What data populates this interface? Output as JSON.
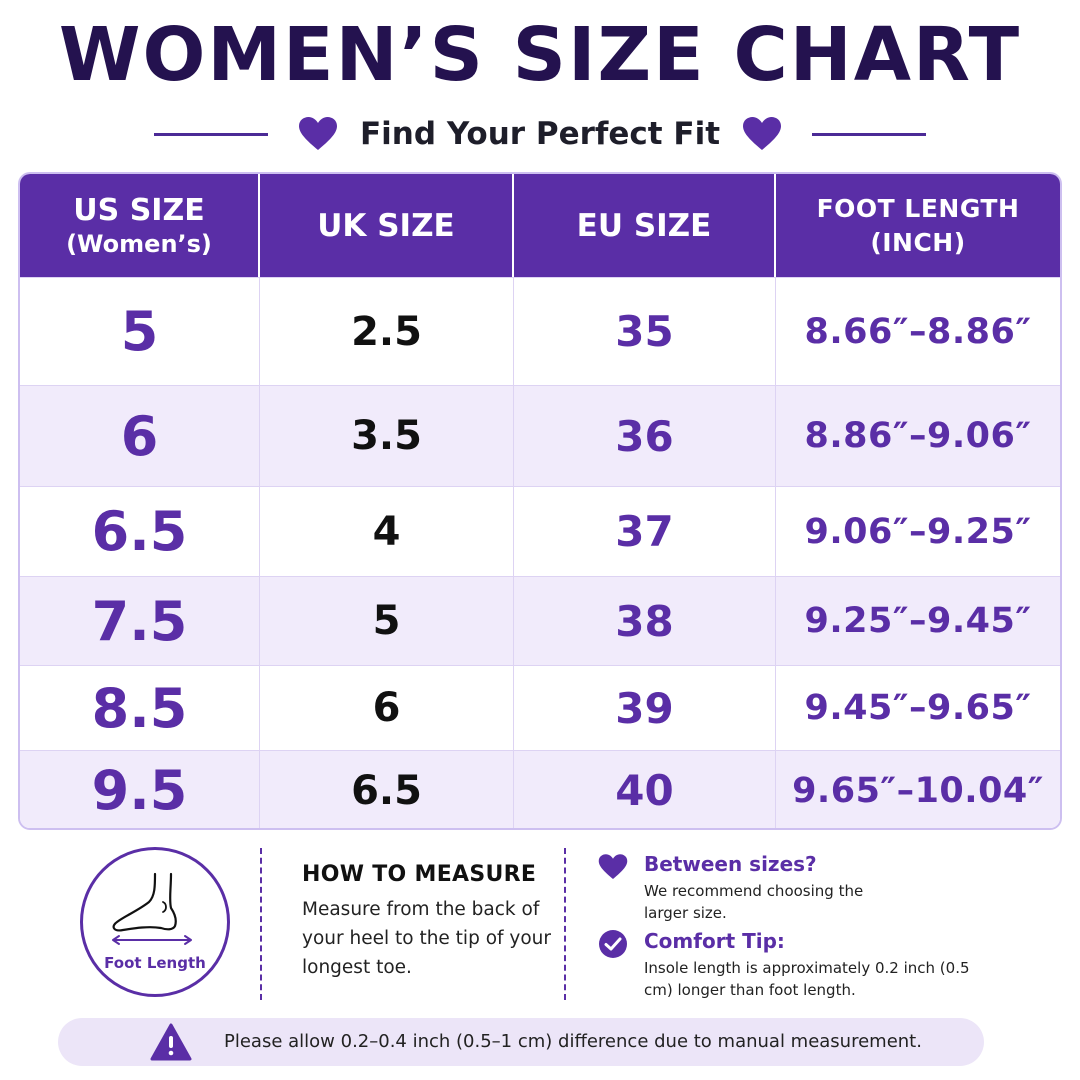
{
  "header": {
    "title": "WOMEN’S SIZE CHART",
    "subtitle": "Find Your Perfect Fit",
    "heart_icon": "heart-icon",
    "accent_color": "#5a2ea6",
    "title_color": "#24124f"
  },
  "table": {
    "columns": [
      {
        "line1": "US SIZE",
        "line2": "(Women’s)"
      },
      {
        "line1": "UK SIZE",
        "line2": ""
      },
      {
        "line1": "EU SIZE",
        "line2": ""
      },
      {
        "line1": "FOOT LENGTH",
        "line2": "(INCH)"
      }
    ],
    "rows": [
      {
        "us": "5",
        "uk": "2.5",
        "eu": "35",
        "foot": "8.66″–8.86″"
      },
      {
        "us": "6",
        "uk": "3.5",
        "eu": "36",
        "foot": "8.86″–9.06″"
      },
      {
        "us": "6.5",
        "uk": "4",
        "eu": "37",
        "foot": "9.06″–9.25″"
      },
      {
        "us": "7.5",
        "uk": "5",
        "eu": "38",
        "foot": "9.25″–9.45″"
      },
      {
        "us": "8.5",
        "uk": "6",
        "eu": "39",
        "foot": "9.45″–9.65″"
      },
      {
        "us": "9.5",
        "uk": "6.5",
        "eu": "40",
        "foot": "9.65″–10.04″"
      }
    ]
  },
  "illustration": {
    "icon": "foot-icon",
    "label": "Foot Length"
  },
  "how_to_measure": {
    "title": "HOW TO MEASURE",
    "body": "Measure from the back of your heel to the tip of your longest toe."
  },
  "tips": [
    {
      "icon": "heart-icon",
      "title": "Between sizes?",
      "body": "We recommend choosing the larger size."
    },
    {
      "icon": "check-circle-icon",
      "title": "Comfort Tip:",
      "body": "Insole length is approximately 0.2 inch (0.5 cm) longer than foot length."
    }
  ],
  "notice": {
    "icon": "warning-icon",
    "text": "Please allow 0.2–0.4 inch (0.5–1 cm) difference due to manual measurement."
  }
}
